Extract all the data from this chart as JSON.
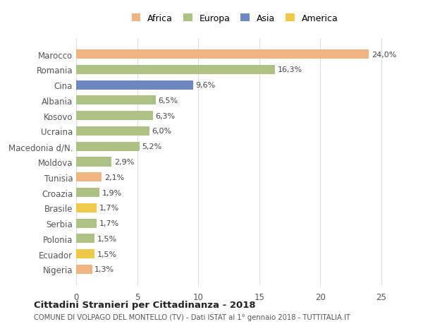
{
  "countries": [
    "Marocco",
    "Romania",
    "Cina",
    "Albania",
    "Kosovo",
    "Ucraina",
    "Macedonia d/N.",
    "Moldova",
    "Tunisia",
    "Croazia",
    "Brasile",
    "Serbia",
    "Polonia",
    "Ecuador",
    "Nigeria"
  ],
  "values": [
    24.0,
    16.3,
    9.6,
    6.5,
    6.3,
    6.0,
    5.2,
    2.9,
    2.1,
    1.9,
    1.7,
    1.7,
    1.5,
    1.5,
    1.3
  ],
  "labels": [
    "24,0%",
    "16,3%",
    "9,6%",
    "6,5%",
    "6,3%",
    "6,0%",
    "5,2%",
    "2,9%",
    "2,1%",
    "1,9%",
    "1,7%",
    "1,7%",
    "1,5%",
    "1,5%",
    "1,3%"
  ],
  "colors": [
    "#f0b482",
    "#aec185",
    "#6e87c0",
    "#aec185",
    "#aec185",
    "#aec185",
    "#aec185",
    "#aec185",
    "#f0b482",
    "#aec185",
    "#f0c84a",
    "#aec185",
    "#aec185",
    "#f0c84a",
    "#f0b482"
  ],
  "legend_labels": [
    "Africa",
    "Europa",
    "Asia",
    "America"
  ],
  "legend_colors": [
    "#f0b482",
    "#aec185",
    "#6e87c0",
    "#f0c84a"
  ],
  "title": "Cittadini Stranieri per Cittadinanza - 2018",
  "subtitle": "COMUNE DI VOLPAGO DEL MONTELLO (TV) - Dati ISTAT al 1° gennaio 2018 - TUTTITALIA.IT",
  "xlim": [
    0,
    26
  ],
  "xticks": [
    0,
    5,
    10,
    15,
    20,
    25
  ],
  "background_color": "#ffffff",
  "grid_color": "#dddddd",
  "bar_height": 0.6
}
